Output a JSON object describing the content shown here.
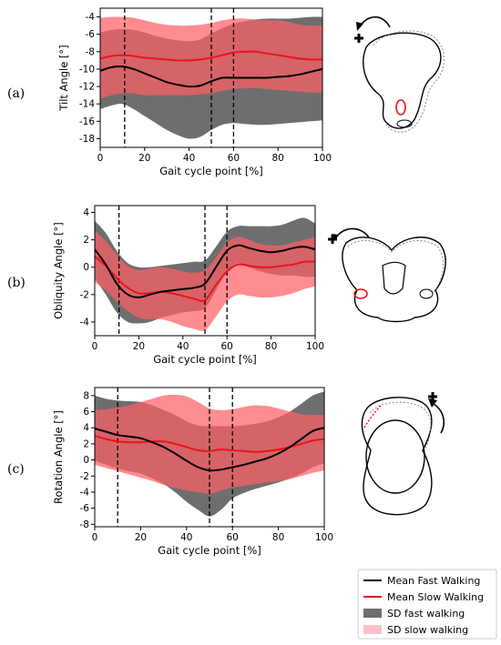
{
  "colors": {
    "mean_fast": "#000000",
    "mean_slow": "#e8141c",
    "sd_fast": "#6e6e6e",
    "sd_slow": "#ff5f66",
    "sd_overlap": "#d32a2a",
    "sd_slow_legend": "#ffc0c8"
  },
  "legend": {
    "mean_fast": "Mean Fast Walking",
    "mean_slow": "Mean Slow Walking",
    "sd_fast": "SD fast walking",
    "sd_slow": "SD slow walking"
  },
  "icons": [
    "plus-icon",
    "rotation-arrow-icon",
    "pelvis-lateral-icon",
    "pelvis-frontal-icon",
    "pelvis-transverse-icon"
  ],
  "chart_data": [
    {
      "panel_label": "(a)",
      "type": "line",
      "ylabel": "Tilt Angle [°]",
      "xlabel": "Gait cycle point [%]",
      "xlim": [
        0,
        100
      ],
      "ylim": [
        -19,
        -3
      ],
      "xticks": [
        0,
        20,
        40,
        60,
        80,
        100
      ],
      "yticks": [
        -4,
        -6,
        -8,
        -10,
        -12,
        -14,
        -16,
        -18
      ],
      "vlines": [
        11,
        50,
        60
      ],
      "x": [
        0,
        5,
        10,
        15,
        20,
        25,
        30,
        35,
        40,
        45,
        50,
        55,
        60,
        65,
        70,
        75,
        80,
        85,
        90,
        95,
        100
      ],
      "series": [
        {
          "name": "Mean Fast Walking",
          "values": [
            -10.2,
            -9.8,
            -9.7,
            -10.0,
            -10.5,
            -11.0,
            -11.5,
            -11.8,
            -12.0,
            -11.9,
            -11.4,
            -11.0,
            -11.0,
            -11.0,
            -11.0,
            -11.0,
            -10.9,
            -10.8,
            -10.6,
            -10.3,
            -10.0
          ]
        },
        {
          "name": "Mean Slow Walking",
          "values": [
            -8.8,
            -8.5,
            -8.4,
            -8.5,
            -8.7,
            -8.8,
            -8.9,
            -9.0,
            -9.0,
            -8.9,
            -8.7,
            -8.4,
            -8.1,
            -8.0,
            -8.0,
            -8.2,
            -8.4,
            -8.6,
            -8.8,
            -8.9,
            -8.9
          ]
        },
        {
          "name": "SD fast walking",
          "upper": [
            -5.8,
            -5.5,
            -5.4,
            -5.5,
            -5.8,
            -6.2,
            -6.5,
            -6.7,
            -6.8,
            -6.6,
            -5.9,
            -5.3,
            -4.8,
            -4.5,
            -4.3,
            -4.2,
            -4.2,
            -4.2,
            -4.1,
            -4.0,
            -4.0
          ],
          "lower": [
            -14.6,
            -14.2,
            -14.0,
            -14.6,
            -15.4,
            -16.2,
            -17.0,
            -17.6,
            -18.0,
            -17.8,
            -17.0,
            -16.4,
            -16.2,
            -16.3,
            -16.4,
            -16.4,
            -16.3,
            -16.2,
            -16.1,
            -16.0,
            -15.9
          ]
        },
        {
          "name": "SD slow walking",
          "upper": [
            -4.1,
            -4.0,
            -4.0,
            -4.1,
            -4.4,
            -4.7,
            -4.9,
            -5.0,
            -5.0,
            -4.9,
            -4.7,
            -4.4,
            -4.2,
            -4.2,
            -4.3,
            -4.4,
            -4.4,
            -4.6,
            -4.9,
            -5.0,
            -5.0
          ],
          "lower": [
            -13.4,
            -13.0,
            -12.8,
            -12.8,
            -13.0,
            -13.0,
            -13.0,
            -13.0,
            -13.0,
            -12.9,
            -12.8,
            -12.5,
            -12.3,
            -12.2,
            -12.2,
            -12.3,
            -12.4,
            -12.5,
            -12.6,
            -12.7,
            -12.7
          ]
        }
      ]
    },
    {
      "panel_label": "(b)",
      "type": "line",
      "ylabel": "Obliquity Angle [°]",
      "xlabel": "Gait cycle point [%]",
      "xlim": [
        0,
        100
      ],
      "ylim": [
        -5,
        4.5
      ],
      "xticks": [
        0,
        20,
        40,
        60,
        80,
        100
      ],
      "yticks": [
        4,
        2,
        0,
        -2,
        -4
      ],
      "vlines": [
        11,
        50,
        60
      ],
      "x": [
        0,
        5,
        10,
        15,
        20,
        25,
        30,
        35,
        40,
        45,
        50,
        55,
        60,
        65,
        70,
        75,
        80,
        85,
        90,
        95,
        100
      ],
      "series": [
        {
          "name": "Mean Fast Walking",
          "values": [
            1.3,
            0.2,
            -1.2,
            -2.0,
            -2.2,
            -2.0,
            -1.8,
            -1.7,
            -1.6,
            -1.5,
            -1.2,
            0.0,
            1.2,
            1.6,
            1.4,
            1.2,
            1.1,
            1.2,
            1.4,
            1.5,
            1.3
          ]
        },
        {
          "name": "Mean Slow Walking",
          "values": [
            0.8,
            0.1,
            -0.8,
            -1.5,
            -1.9,
            -1.9,
            -1.8,
            -1.9,
            -2.1,
            -2.3,
            -2.4,
            -1.3,
            -0.3,
            0.2,
            0.1,
            0.0,
            0.0,
            0.1,
            0.2,
            0.4,
            0.4
          ]
        },
        {
          "name": "SD fast walking",
          "upper": [
            3.4,
            2.5,
            1.2,
            0.3,
            0.0,
            0.0,
            0.1,
            0.2,
            0.3,
            0.4,
            0.5,
            1.5,
            2.6,
            3.0,
            3.0,
            3.0,
            3.0,
            3.1,
            3.4,
            3.6,
            3.2
          ],
          "lower": [
            -0.8,
            -2.0,
            -3.3,
            -4.0,
            -4.1,
            -4.0,
            -3.7,
            -3.5,
            -3.3,
            -3.2,
            -3.0,
            -1.7,
            -0.3,
            0.3,
            0.0,
            -0.3,
            -0.5,
            -0.6,
            -0.6,
            -0.7,
            -0.7
          ]
        },
        {
          "name": "SD slow walking",
          "upper": [
            2.7,
            1.9,
            0.9,
            0.1,
            -0.2,
            -0.1,
            0.0,
            -0.1,
            -0.3,
            -0.4,
            -0.2,
            0.7,
            1.8,
            2.2,
            2.0,
            1.7,
            1.6,
            1.6,
            1.8,
            2.0,
            2.2
          ],
          "lower": [
            -1.1,
            -1.7,
            -2.5,
            -3.2,
            -3.7,
            -3.8,
            -3.8,
            -4.0,
            -4.3,
            -4.5,
            -4.6,
            -3.6,
            -2.5,
            -2.0,
            -2.1,
            -2.2,
            -2.2,
            -2.1,
            -1.9,
            -1.6,
            -1.4
          ]
        }
      ]
    },
    {
      "panel_label": "(c)",
      "type": "line",
      "ylabel": "Rotation Angle [°]",
      "xlabel": "Gait cycle point [%]",
      "xlim": [
        0,
        100
      ],
      "ylim": [
        -8.3,
        9
      ],
      "xticks": [
        0,
        20,
        40,
        60,
        80,
        100
      ],
      "yticks": [
        8,
        6,
        4,
        2,
        0,
        -2,
        -4,
        -6,
        -8
      ],
      "vlines": [
        10,
        50,
        60
      ],
      "x": [
        0,
        5,
        10,
        15,
        20,
        25,
        30,
        35,
        40,
        45,
        50,
        55,
        60,
        65,
        70,
        75,
        80,
        85,
        90,
        95,
        100
      ],
      "series": [
        {
          "name": "Mean Fast Walking",
          "values": [
            3.9,
            3.5,
            3.1,
            2.9,
            2.7,
            2.2,
            1.6,
            0.8,
            -0.1,
            -0.9,
            -1.3,
            -1.2,
            -0.9,
            -0.6,
            -0.2,
            0.2,
            0.8,
            1.6,
            2.6,
            3.6,
            4.0
          ]
        },
        {
          "name": "Mean Slow Walking",
          "values": [
            3.0,
            2.6,
            2.3,
            2.2,
            2.2,
            2.3,
            2.3,
            2.0,
            1.6,
            1.2,
            1.1,
            1.3,
            1.2,
            1.1,
            1.0,
            1.1,
            1.3,
            1.6,
            2.0,
            2.4,
            2.6
          ]
        },
        {
          "name": "SD fast walking",
          "upper": [
            8.0,
            7.6,
            7.4,
            7.3,
            7.2,
            6.8,
            6.2,
            5.6,
            4.8,
            4.3,
            4.2,
            4.2,
            4.2,
            4.3,
            4.5,
            4.8,
            5.3,
            6.0,
            7.0,
            8.0,
            8.5
          ],
          "lower": [
            -0.1,
            -0.6,
            -1.1,
            -1.4,
            -1.7,
            -2.3,
            -3.0,
            -4.0,
            -5.2,
            -6.2,
            -7.0,
            -6.2,
            -4.8,
            -4.1,
            -3.6,
            -3.2,
            -2.8,
            -2.3,
            -1.7,
            -0.9,
            -0.4
          ]
        },
        {
          "name": "SD slow walking",
          "upper": [
            6.2,
            6.3,
            6.5,
            6.8,
            7.2,
            7.6,
            8.0,
            8.1,
            7.9,
            7.2,
            6.4,
            6.2,
            6.3,
            6.6,
            6.8,
            6.7,
            6.4,
            6.0,
            5.7,
            5.6,
            5.6
          ],
          "lower": [
            -0.6,
            -1.0,
            -1.4,
            -1.8,
            -2.2,
            -2.6,
            -3.1,
            -3.5,
            -3.8,
            -4.0,
            -4.2,
            -3.8,
            -3.4,
            -3.2,
            -3.0,
            -2.8,
            -2.6,
            -2.4,
            -2.0,
            -1.6,
            -1.3
          ]
        }
      ]
    }
  ]
}
